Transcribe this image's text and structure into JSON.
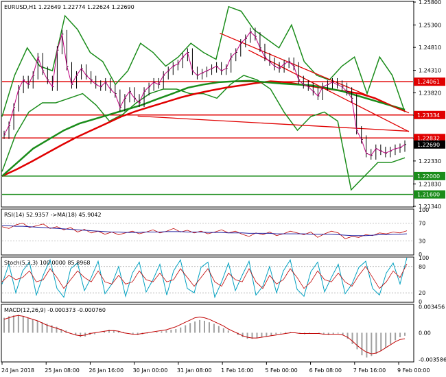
{
  "chart_data": {
    "type": "line",
    "main": {
      "header": "EURUSD,H1  1.22649 1.22774 1.22624 1.22690",
      "y_ticks": [
        "1.25800",
        "1.25300",
        "1.24810",
        "1.24310",
        "1.23820",
        "1.23330",
        "1.22830",
        "1.22330",
        "1.21830",
        "1.21340"
      ],
      "ylim": [
        1.2134,
        1.258
      ],
      "current_price": {
        "label": "1.22690",
        "value": 1.2269
      },
      "levels": [
        {
          "label": "1.24061",
          "value": 1.24061,
          "color": "#e00000"
        },
        {
          "label": "1.23334",
          "value": 1.23334,
          "color": "#e00000"
        },
        {
          "label": "1.22832",
          "value": 1.22832,
          "color": "#e00000"
        },
        {
          "label": "1.22000",
          "value": 1.22,
          "color": "#1a8c1a"
        },
        {
          "label": "1.21600",
          "value": 1.216,
          "color": "#1a8c1a"
        }
      ],
      "trendlines": [
        {
          "color": "#e00000",
          "points": [
            [
              0.53,
              1.2512
            ],
            [
              0.99,
              1.2338
            ]
          ]
        },
        {
          "color": "#e00000",
          "points": [
            [
              0.6,
              1.2475
            ],
            [
              0.99,
              1.2297
            ]
          ]
        },
        {
          "color": "#e00000",
          "points": [
            [
              0.33,
              1.2331
            ],
            [
              0.99,
              1.2298
            ]
          ]
        }
      ],
      "price_series": [
        1.229,
        1.231,
        1.235,
        1.239,
        1.241,
        1.24,
        1.242,
        1.246,
        1.243,
        1.241,
        1.2395,
        1.2475,
        1.251,
        1.244,
        1.24,
        1.242,
        1.2435,
        1.242,
        1.241,
        1.24,
        1.2395,
        1.2405,
        1.239,
        1.238,
        1.235,
        1.237,
        1.2385,
        1.237,
        1.236,
        1.2385,
        1.2395,
        1.2405,
        1.24,
        1.242,
        1.243,
        1.244,
        1.2445,
        1.246,
        1.247,
        1.243,
        1.242,
        1.2425,
        1.243,
        1.2435,
        1.244,
        1.243,
        1.2435,
        1.246,
        1.247,
        1.249,
        1.25,
        1.2515,
        1.2505,
        1.248,
        1.246,
        1.245,
        1.244,
        1.2435,
        1.2445,
        1.245,
        1.244,
        1.241,
        1.24,
        1.2395,
        1.2385,
        1.2375,
        1.2395,
        1.24,
        1.2405,
        1.24,
        1.2395,
        1.2385,
        1.237,
        1.23,
        1.228,
        1.225,
        1.2245,
        1.226,
        1.2255,
        1.225,
        1.2255,
        1.226,
        1.2262,
        1.2269
      ],
      "ma_slow_red": [
        1.22,
        1.2215,
        1.2232,
        1.225,
        1.2268,
        1.2285,
        1.23,
        1.2315,
        1.233,
        1.2342,
        1.2352,
        1.2362,
        1.2372,
        1.238,
        1.2387,
        1.2393,
        1.2398,
        1.2403,
        1.2407,
        1.2405,
        1.24,
        1.2395,
        1.239,
        1.2385,
        1.238,
        1.237,
        1.2355,
        1.2342
      ],
      "ma_green": [
        1.22,
        1.223,
        1.226,
        1.228,
        1.23,
        1.2315,
        1.2325,
        1.2335,
        1.2345,
        1.2355,
        1.2368,
        1.238,
        1.2393,
        1.24,
        1.2405,
        1.2407,
        1.2408,
        1.2405,
        1.2402,
        1.24,
        1.2398,
        1.2392,
        1.2385,
        1.2375,
        1.2365,
        1.2355,
        1.2345
      ],
      "bb_upper": [
        1.233,
        1.242,
        1.248,
        1.244,
        1.243,
        1.255,
        1.252,
        1.247,
        1.245,
        1.24,
        1.243,
        1.249,
        1.247,
        1.244,
        1.246,
        1.249,
        1.247,
        1.2455,
        1.257,
        1.256,
        1.252,
        1.25,
        1.248,
        1.253,
        1.245,
        1.242,
        1.241,
        1.244,
        1.246,
        1.238,
        1.246,
        1.242,
        1.234
      ],
      "bb_lower": [
        1.221,
        1.229,
        1.234,
        1.236,
        1.236,
        1.237,
        1.238,
        1.2355,
        1.232,
        1.2335,
        1.236,
        1.238,
        1.239,
        1.239,
        1.238,
        1.238,
        1.237,
        1.24,
        1.242,
        1.241,
        1.239,
        1.234,
        1.23,
        1.233,
        1.234,
        1.232,
        1.217,
        1.22,
        1.223,
        1.223,
        1.224
      ]
    },
    "rsi": {
      "header": "RSI(14) 52.9357  ->MA(18) 45.9042",
      "y_ticks": [
        "100",
        "70",
        "30",
        "0"
      ],
      "ylim": [
        0,
        100
      ],
      "levels": [
        70,
        30
      ],
      "rsi_series": [
        62,
        58,
        66,
        70,
        60,
        64,
        68,
        58,
        62,
        55,
        60,
        50,
        56,
        48,
        52,
        45,
        50,
        44,
        48,
        52,
        46,
        50,
        55,
        48,
        52,
        58,
        50,
        54,
        48,
        52,
        46,
        50,
        55,
        48,
        52,
        45,
        40,
        48,
        44,
        50,
        42,
        46,
        52,
        48,
        44,
        50,
        38,
        46,
        52,
        48,
        35,
        40,
        38,
        44,
        42,
        48,
        46,
        50,
        48,
        53
      ],
      "ma_series": [
        64,
        64,
        63,
        63,
        62,
        61,
        60,
        59,
        58,
        57,
        56,
        55,
        54,
        53,
        52,
        51,
        50,
        50,
        49,
        49,
        49,
        50,
        50,
        50,
        51,
        51,
        51,
        50,
        50,
        50,
        49,
        49,
        49,
        48,
        48,
        48,
        47,
        47,
        47,
        47,
        46,
        46,
        46,
        46,
        46,
        45,
        45,
        45,
        45,
        44,
        43,
        42,
        42,
        42,
        43,
        44,
        44,
        45,
        45,
        46
      ]
    },
    "stochastic": {
      "header": "Stoch(5,3,3) 100.0000 85.8968",
      "y_ticks": [
        "100",
        "80",
        "20",
        "0"
      ],
      "ylim": [
        0,
        100
      ],
      "levels": [
        80,
        20
      ],
      "k_series": [
        40,
        85,
        20,
        70,
        90,
        15,
        60,
        95,
        30,
        10,
        75,
        88,
        25,
        55,
        92,
        18,
        40,
        80,
        12,
        65,
        90,
        22,
        50,
        85,
        15,
        70,
        95,
        30,
        20,
        78,
        90,
        10,
        45,
        88,
        25,
        60,
        92,
        15,
        35,
        80,
        20,
        70,
        95,
        28,
        12,
        68,
        90,
        22,
        55,
        85,
        18,
        40,
        78,
        92,
        30,
        15,
        65,
        88,
        40,
        100
      ],
      "d_series": [
        45,
        60,
        50,
        55,
        70,
        45,
        50,
        75,
        55,
        30,
        50,
        70,
        55,
        45,
        70,
        45,
        40,
        60,
        40,
        45,
        70,
        50,
        45,
        65,
        45,
        50,
        75,
        55,
        35,
        55,
        75,
        45,
        35,
        65,
        50,
        45,
        75,
        45,
        30,
        60,
        40,
        50,
        75,
        55,
        30,
        45,
        70,
        50,
        45,
        65,
        45,
        35,
        60,
        80,
        55,
        30,
        45,
        70,
        55,
        86
      ]
    },
    "macd": {
      "header": "MACD(12,26,9) -0.000373 -0.000760",
      "y_ticks": [
        "0.003456",
        "0.00",
        "-0.003586"
      ],
      "ylim": [
        -0.0038,
        0.0037
      ],
      "histogram": [
        0.002,
        0.0022,
        0.0023,
        0.0024,
        0.0022,
        0.002,
        0.0018,
        0.0016,
        0.0014,
        0.0012,
        0.001,
        0.0008,
        0.0005,
        0.0003,
        0.0,
        -0.0003,
        -0.0006,
        -0.0005,
        -0.0003,
        -0.0002,
        0.0,
        0.0002,
        0.0004,
        0.0003,
        0.0002,
        0.0001,
        0.0,
        -0.0002,
        -0.0003,
        -0.0002,
        -0.0001,
        0.0,
        0.0001,
        0.0002,
        0.0003,
        0.0004,
        0.0005,
        0.0007,
        0.001,
        0.0013,
        0.0015,
        0.0017,
        0.0016,
        0.0014,
        0.0012,
        0.0009,
        0.0006,
        0.0003,
        0.0,
        -0.0003,
        -0.0006,
        -0.0008,
        -0.0008,
        -0.0007,
        -0.0006,
        -0.0005,
        -0.0004,
        -0.0002,
        -0.0001,
        0.0001,
        0.0001,
        0.0,
        -0.0001,
        -0.0002,
        -0.0001,
        0.0,
        -0.0001,
        -0.0002,
        -0.0003,
        -0.0002,
        -0.0001,
        -0.0003,
        -0.0008,
        -0.0015,
        -0.0022,
        -0.003,
        -0.0033,
        -0.0031,
        -0.0028,
        -0.0024,
        -0.002,
        -0.0015,
        -0.001,
        -0.0006,
        -0.0004
      ],
      "signal": [
        0.0018,
        0.002,
        0.0022,
        0.0023,
        0.0022,
        0.002,
        0.0018,
        0.0016,
        0.0013,
        0.001,
        0.0008,
        0.0006,
        0.0004,
        0.0001,
        -0.0001,
        -0.0003,
        -0.0004,
        -0.0003,
        -0.0001,
        0.0,
        0.0001,
        0.0002,
        0.0003,
        0.0003,
        0.0002,
        0.0,
        -0.0001,
        -0.0002,
        -0.0002,
        -0.0001,
        0.0,
        0.0001,
        0.0002,
        0.0003,
        0.0004,
        0.0006,
        0.0008,
        0.0011,
        0.0014,
        0.0017,
        0.002,
        0.0021,
        0.002,
        0.0018,
        0.0015,
        0.0012,
        0.0009,
        0.0005,
        0.0002,
        -0.0001,
        -0.0004,
        -0.0006,
        -0.0007,
        -0.0007,
        -0.0006,
        -0.0005,
        -0.0004,
        -0.0003,
        -0.0002,
        -0.0001,
        0.0,
        0.0,
        -0.0001,
        -0.0001,
        -0.0001,
        -0.0001,
        -0.0001,
        -0.0002,
        -0.0002,
        -0.0002,
        -0.0002,
        -0.0003,
        -0.0006,
        -0.0011,
        -0.0017,
        -0.0022,
        -0.0026,
        -0.0028,
        -0.0027,
        -0.0024,
        -0.002,
        -0.0016,
        -0.0012,
        -0.0009,
        -0.0008
      ]
    },
    "x_ticks": [
      "24 Jan 2018",
      "25 Jan 08:00",
      "26 Jan 16:00",
      "30 Jan 00:00",
      "31 Jan 08:00",
      "1 Feb 16:00",
      "5 Feb 00:00",
      "6 Feb 08:00",
      "7 Feb 16:00",
      "9 Feb 00:00"
    ],
    "grid": false,
    "colors": {
      "price": "#000000",
      "ma_fast": "#c00080",
      "ma_slow": "#e00000",
      "ma_green": "#1a8c1a",
      "bb": "#1a8c1a",
      "rsi": "#c00000",
      "rsi_ma": "#2020a0",
      "stoch_k": "#00a0c0",
      "stoch_d": "#c00000",
      "macd_hist": "#a0a0a0",
      "macd_signal": "#c00000",
      "badge_red": "#e00000",
      "badge_green": "#1a8c1a",
      "badge_black": "#000000"
    }
  }
}
